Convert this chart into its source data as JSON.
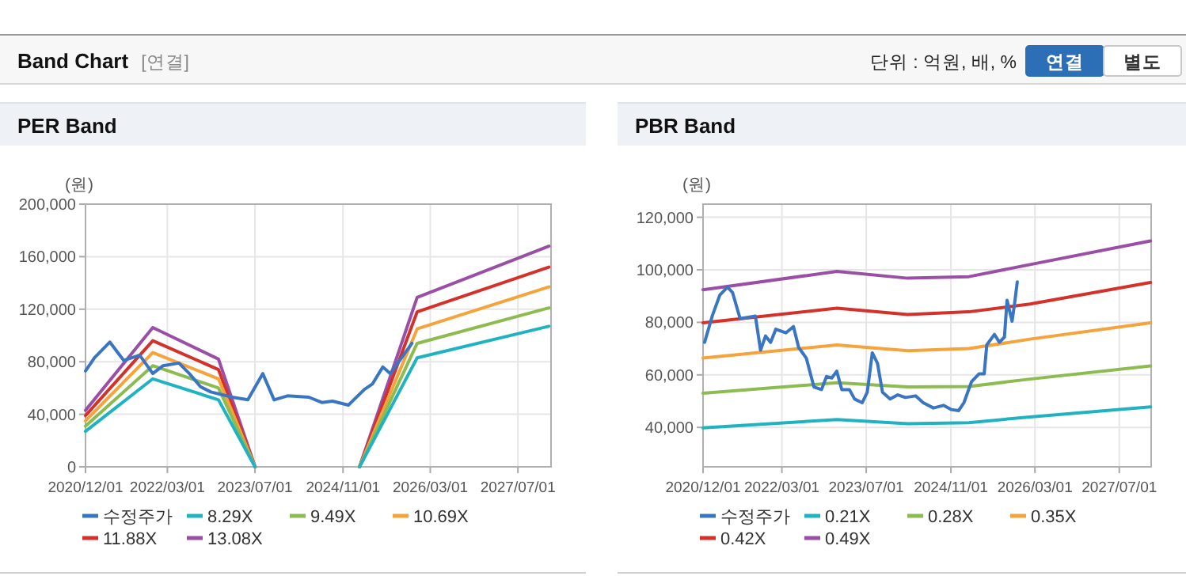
{
  "chart_data": [
    {
      "type": "other",
      "title": "Band Chart",
      "annotations": [
        "[연결]",
        "단위 : 억원, 배, %",
        "연결",
        "별도"
      ]
    },
    {
      "type": "line",
      "title": "PER Band",
      "ylabel": "(원)",
      "xlim": [
        "2020-12-01",
        "2028-01-01"
      ],
      "xticks": [
        {
          "value": "2020-12-01",
          "label": "2020/12/01"
        },
        {
          "value": "2022-03-01",
          "label": "2022/03/01"
        },
        {
          "value": "2023-07-01",
          "label": "2023/07/01"
        },
        {
          "value": "2024-11-01",
          "label": "2024/11/01"
        },
        {
          "value": "2026-03-01",
          "label": "2026/03/01"
        },
        {
          "value": "2027-07-01",
          "label": "2027/07/01"
        }
      ],
      "ylim": [
        0,
        200000
      ],
      "yticks": [
        {
          "value": 0,
          "label": "0"
        },
        {
          "value": 40000,
          "label": "40,000"
        },
        {
          "value": 80000,
          "label": "80,000"
        },
        {
          "value": 120000,
          "label": "120,000"
        },
        {
          "value": 160000,
          "label": "160,000"
        },
        {
          "value": 200000,
          "label": "200,000"
        }
      ],
      "grid": true,
      "legend": "bottom",
      "marker": "none",
      "line_style": "solid",
      "series": [
        {
          "name": "수정주가",
          "color": "#3a75c4",
          "x": [
            "2020-12-01",
            "2021-01-20",
            "2021-04-15",
            "2021-07-01",
            "2021-09-28",
            "2021-12-10",
            "2022-02-05",
            "2022-05-04",
            "2022-07-01",
            "2022-09-01",
            "2022-10-28",
            "2023-02-25",
            "2023-05-22",
            "2023-08-13",
            "2023-10-15",
            "2023-12-28",
            "2024-04-25",
            "2024-07-06",
            "2024-09-04",
            "2024-12-01",
            "2025-02-28",
            "2025-04-13",
            "2025-06-10",
            "2025-07-22",
            "2025-11-19"
          ],
          "values": [
            73000,
            83000,
            95000,
            81000,
            85000,
            71000,
            77000,
            79000,
            71000,
            61000,
            57000,
            53000,
            51000,
            71000,
            51000,
            54000,
            53000,
            49000,
            50000,
            47000,
            59000,
            63000,
            76000,
            71000,
            94000
          ]
        },
        {
          "name": "8.29X",
          "color": "#1fb3c2",
          "x": [
            "2020-12-01",
            "2021-12-10",
            "2022-12-10",
            "2023-07-01"
          ],
          "values": [
            27000,
            67000,
            51000,
            0
          ]
        },
        {
          "name": "9.49X",
          "color": "#8cbb4f",
          "x": [
            "2020-12-01",
            "2021-12-10",
            "2022-12-10",
            "2023-07-01"
          ],
          "values": [
            31000,
            77000,
            60000,
            0
          ]
        },
        {
          "name": "10.69X",
          "color": "#f5a33a",
          "x": [
            "2020-12-01",
            "2021-12-10",
            "2022-12-10",
            "2023-07-01"
          ],
          "values": [
            35000,
            87000,
            67000,
            0
          ]
        },
        {
          "name": "11.88X",
          "color": "#d33129",
          "x": [
            "2020-12-01",
            "2021-12-10",
            "2022-12-10",
            "2023-07-01"
          ],
          "values": [
            39000,
            96000,
            74000,
            0
          ]
        },
        {
          "name": "13.08X",
          "color": "#9a4ea6",
          "x": [
            "2020-12-01",
            "2021-12-10",
            "2022-12-10",
            "2023-07-01"
          ],
          "values": [
            43000,
            106000,
            82000,
            0
          ]
        },
        {
          "color": "#1fb3c2",
          "x": [
            "2025-02-01",
            "2025-12-18",
            "2027-12-20"
          ],
          "values": [
            0,
            83000,
            107000
          ]
        },
        {
          "color": "#8cbb4f",
          "x": [
            "2025-02-01",
            "2025-12-18",
            "2027-12-20"
          ],
          "values": [
            0,
            94000,
            121000
          ]
        },
        {
          "color": "#f5a33a",
          "x": [
            "2025-02-01",
            "2025-12-18",
            "2027-12-20"
          ],
          "values": [
            0,
            105000,
            137000
          ]
        },
        {
          "color": "#d33129",
          "x": [
            "2025-02-01",
            "2025-12-18",
            "2027-12-20"
          ],
          "values": [
            0,
            118000,
            152000
          ]
        },
        {
          "color": "#9a4ea6",
          "x": [
            "2025-02-01",
            "2025-12-18",
            "2027-12-20"
          ],
          "values": [
            0,
            129000,
            168000
          ]
        }
      ]
    },
    {
      "type": "line",
      "title": "PBR Band",
      "ylabel": "(원)",
      "xlim": [
        "2020-12-01",
        "2028-01-01"
      ],
      "xticks": [
        {
          "value": "2020-12-01",
          "label": "2020/12/01"
        },
        {
          "value": "2022-03-01",
          "label": "2022/03/01"
        },
        {
          "value": "2023-07-01",
          "label": "2023/07/01"
        },
        {
          "value": "2024-11-01",
          "label": "2024/11/01"
        },
        {
          "value": "2026-03-01",
          "label": "2026/03/01"
        },
        {
          "value": "2027-07-01",
          "label": "2027/07/01"
        }
      ],
      "ylim": [
        25000,
        125000
      ],
      "yticks": [
        {
          "value": 40000,
          "label": "40,000"
        },
        {
          "value": 60000,
          "label": "60,000"
        },
        {
          "value": 80000,
          "label": "80,000"
        },
        {
          "value": 100000,
          "label": "100,000"
        },
        {
          "value": 120000,
          "label": "120,000"
        }
      ],
      "grid": true,
      "legend": "bottom",
      "marker": "none",
      "line_style": "solid",
      "series": [
        {
          "name": "수정주가",
          "color": "#3a75c4",
          "x": [
            "2020-12-10",
            "2021-01-23",
            "2021-03-08",
            "2021-04-21",
            "2021-05-20",
            "2021-07-03",
            "2021-09-29",
            "2021-10-29",
            "2021-11-27",
            "2021-12-26",
            "2022-01-25",
            "2022-03-24",
            "2022-05-07",
            "2022-06-06",
            "2022-07-20",
            "2022-09-02",
            "2022-10-16",
            "2022-11-14",
            "2022-12-14",
            "2023-01-12",
            "2023-02-10",
            "2023-03-26",
            "2023-04-25",
            "2023-06-08",
            "2023-07-07",
            "2023-08-05",
            "2023-09-04",
            "2023-10-03",
            "2023-11-16",
            "2023-12-30",
            "2024-02-12",
            "2024-04-11",
            "2024-05-25",
            "2024-07-23",
            "2024-09-19",
            "2024-11-02",
            "2024-12-16",
            "2025-01-15",
            "2025-02-28",
            "2025-04-13",
            "2025-05-12",
            "2025-05-27",
            "2025-07-10",
            "2025-08-08",
            "2025-09-06",
            "2025-09-21",
            "2025-10-20",
            "2025-11-04",
            "2025-11-19"
          ],
          "values": [
            72400,
            82400,
            90400,
            93400,
            91400,
            81400,
            82400,
            69400,
            74800,
            72400,
            77400,
            76000,
            78400,
            70400,
            66400,
            55400,
            54400,
            59400,
            58800,
            61400,
            54400,
            54400,
            50800,
            49400,
            53400,
            68400,
            64400,
            53400,
            50800,
            52400,
            51400,
            52000,
            49400,
            47400,
            48400,
            46800,
            46400,
            49400,
            57400,
            60400,
            60400,
            71400,
            75400,
            72400,
            74400,
            88400,
            80400,
            87400,
            95400
          ]
        },
        {
          "name": "0.21X",
          "color": "#1fb3c2",
          "x": [
            "2020-12-01",
            "2023-01-13",
            "2024-02-25",
            "2025-02-13",
            "2026-02-01",
            "2027-12-28"
          ],
          "values": [
            39800,
            43000,
            41400,
            41800,
            44000,
            47800
          ]
        },
        {
          "name": "0.28X",
          "color": "#8cbb4f",
          "x": [
            "2020-12-01",
            "2023-01-13",
            "2024-02-25",
            "2025-02-13",
            "2026-02-01",
            "2027-12-28"
          ],
          "values": [
            53000,
            57000,
            55400,
            55600,
            58400,
            63400
          ]
        },
        {
          "name": "0.35X",
          "color": "#f5a33a",
          "x": [
            "2020-12-01",
            "2023-01-13",
            "2024-02-25",
            "2025-02-13",
            "2026-02-01",
            "2027-12-28"
          ],
          "values": [
            66400,
            71400,
            69200,
            70000,
            73600,
            79800
          ]
        },
        {
          "name": "0.42X",
          "color": "#d33129",
          "x": [
            "2020-12-01",
            "2023-01-13",
            "2024-02-25",
            "2025-02-13",
            "2026-02-01",
            "2027-12-28"
          ],
          "values": [
            79800,
            85400,
            83000,
            84000,
            87000,
            95200
          ]
        },
        {
          "name": "0.49X",
          "color": "#9a4ea6",
          "x": [
            "2020-12-01",
            "2023-01-13",
            "2024-02-25",
            "2025-02-13",
            "2026-02-01",
            "2027-12-28"
          ],
          "values": [
            92400,
            99400,
            96800,
            97400,
            102000,
            111000
          ]
        }
      ]
    }
  ]
}
